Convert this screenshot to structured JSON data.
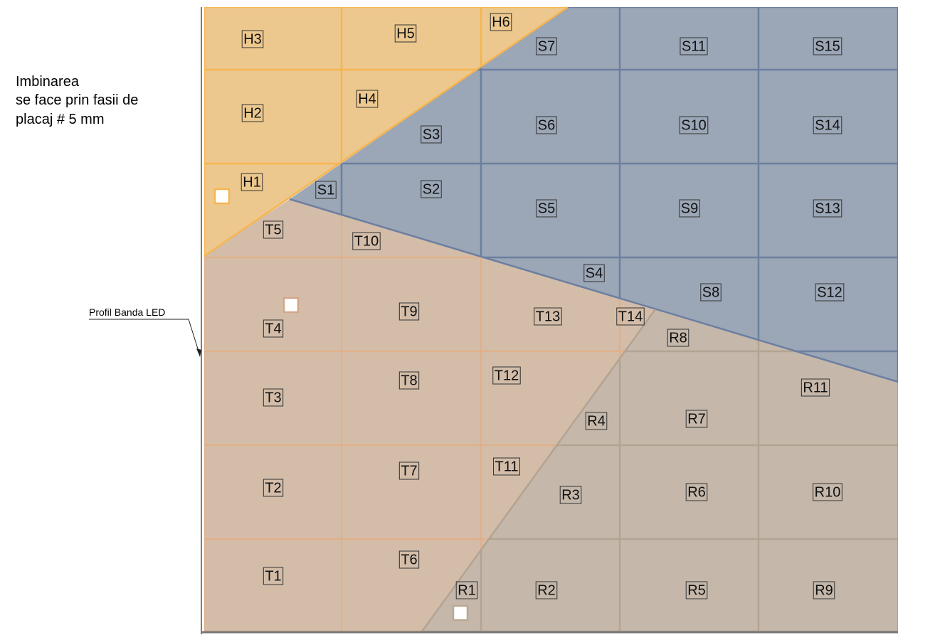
{
  "note": {
    "lines": [
      "Imbinarea",
      "se face prin fasii de",
      "placaj # 5 mm"
    ]
  },
  "callout": "Profil Banda LED",
  "panels": [
    "H3",
    "H5",
    "H6",
    "S7",
    "S11",
    "S15",
    "H2",
    "H4",
    "S3",
    "S6",
    "S10",
    "S14",
    "H1",
    "S1",
    "S2",
    "S5",
    "S9",
    "S13",
    "T5",
    "T10",
    "S4",
    "S8",
    "S12",
    "T9",
    "T13",
    "T14",
    "T4",
    "R8",
    "T8",
    "T12",
    "R11",
    "T3",
    "R4",
    "R7",
    "T7",
    "T11",
    "T2",
    "R3",
    "R6",
    "R10",
    "T6",
    "T1",
    "R1",
    "R2",
    "R5",
    "R9"
  ]
}
